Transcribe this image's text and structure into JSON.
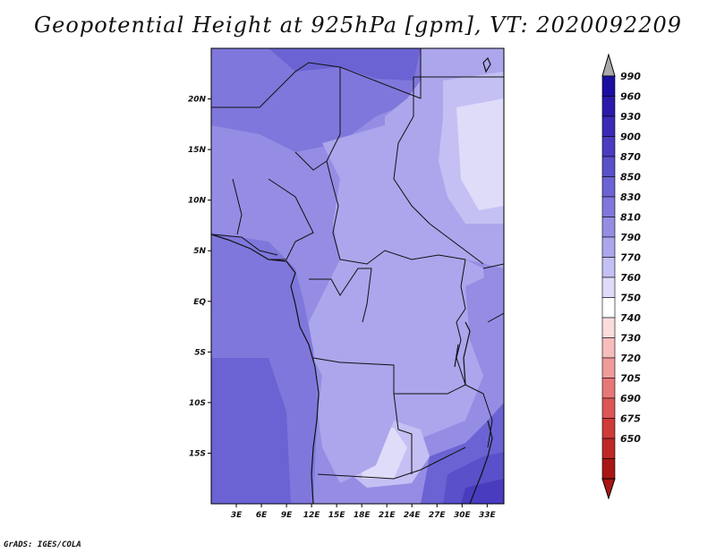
{
  "title": "Geopotential Height at 925hPa [gpm], VT: 2020092209",
  "credit": "GrADS: IGES/COLA",
  "map": {
    "lon_range": [
      0,
      35
    ],
    "lat_range": [
      -20,
      25
    ],
    "lat_ticks": [
      {
        "value": 20,
        "label": "20N"
      },
      {
        "value": 15,
        "label": "15N"
      },
      {
        "value": 10,
        "label": "10N"
      },
      {
        "value": 5,
        "label": "5N"
      },
      {
        "value": 0,
        "label": "EQ"
      },
      {
        "value": -5,
        "label": "5S"
      },
      {
        "value": -10,
        "label": "10S"
      },
      {
        "value": -15,
        "label": "15S"
      }
    ],
    "lon_ticks": [
      {
        "value": 3,
        "label": "3E"
      },
      {
        "value": 6,
        "label": "6E"
      },
      {
        "value": 9,
        "label": "9E"
      },
      {
        "value": 12,
        "label": "12E"
      },
      {
        "value": 15,
        "label": "15E"
      },
      {
        "value": 18,
        "label": "18E"
      },
      {
        "value": 21,
        "label": "21E"
      },
      {
        "value": 24,
        "label": "24E"
      },
      {
        "value": 27,
        "label": "27E"
      },
      {
        "value": 30,
        "label": "30E"
      },
      {
        "value": 33,
        "label": "33E"
      }
    ]
  },
  "colorbar": {
    "levels": [
      "990",
      "960",
      "930",
      "900",
      "870",
      "850",
      "830",
      "810",
      "790",
      "770",
      "760",
      "750",
      "740",
      "730",
      "720",
      "705",
      "690",
      "675",
      "650"
    ],
    "colors": [
      "#1c0ea0",
      "#2a1aaa",
      "#3b2ab5",
      "#4a3cbf",
      "#5a50c9",
      "#6b63d3",
      "#8077dc",
      "#958de4",
      "#aca6ec",
      "#c4c0f3",
      "#dedcf9",
      "#ffffff",
      "#fcdcdc",
      "#f7bdbd",
      "#f09a9a",
      "#e77777",
      "#dc5656",
      "#cf3a3a",
      "#bf2727",
      "#a81616"
    ],
    "top_arrow_color": "#a9a9a9"
  }
}
